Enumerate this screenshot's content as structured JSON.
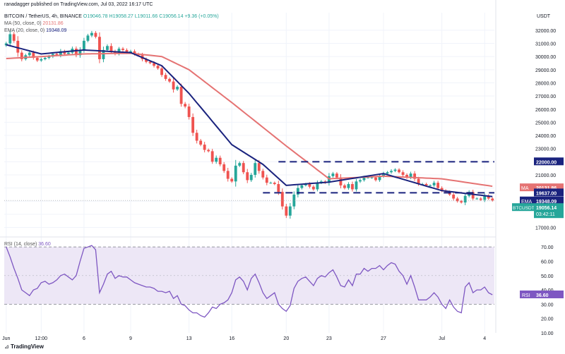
{
  "header": {
    "publisher_line": "ranadagger published on TradingView.com, Jul 03, 2022 16:17 UTC",
    "symbol_line": "BITCOIN / TetherUS, 4h, BINANCE",
    "ohlc": "O19046.78  H19058.27  L19011.66  C19056.14  +9.36 (+0.05%)",
    "ma_label": "MA (50, close, 0)",
    "ma_value": "20131.86",
    "ema_label": "EMA (20, close, 0)",
    "ema_value": "19348.09",
    "currency": "USDT"
  },
  "footer": {
    "brand": "TradingView"
  },
  "colors": {
    "up": "#26a69a",
    "down": "#ef5350",
    "ma": "#e57373",
    "ema": "#1a237e",
    "rsi": "#7e57c2",
    "rsi_band": "#ede7f6",
    "hline": "#1a237e"
  },
  "chart_data": [
    {
      "type": "candlestick",
      "title": "BITCOIN / TetherUS, 4h, BINANCE",
      "ylim": [
        16600,
        32800
      ],
      "y_ticks": [
        "32000.00",
        "31000.00",
        "30000.00",
        "29000.00",
        "28000.00",
        "27000.00",
        "26000.00",
        "25000.00",
        "24000.00",
        "23000.00",
        "22000.00",
        "21000.00",
        "20000.00",
        "19000.00",
        "18000.00",
        "17000.00"
      ],
      "x_ticks": [
        "Jun",
        "12:00",
        "6",
        "9",
        "13",
        "16",
        "20",
        "23",
        "27",
        "Jul",
        "4"
      ],
      "x_tick_index": [
        0,
        9,
        20,
        32,
        47,
        58,
        72,
        83,
        97,
        112,
        123
      ],
      "x_count": 126,
      "close": [
        31000,
        31700,
        31200,
        30300,
        29800,
        30100,
        30300,
        29900,
        29700,
        29800,
        29900,
        30000,
        30200,
        30100,
        30400,
        30200,
        30300,
        30600,
        30100,
        30500,
        31200,
        31600,
        31800,
        31500,
        29800,
        30500,
        30800,
        30400,
        30200,
        30600,
        30500,
        30300,
        30400,
        30200,
        30100,
        29800,
        29600,
        29500,
        29300,
        29100,
        28600,
        28300,
        28100,
        27500,
        27700,
        26400,
        26200,
        25400,
        24200,
        23600,
        23300,
        22900,
        22800,
        22000,
        22300,
        21800,
        21300,
        20700,
        20500,
        21700,
        21900,
        21200,
        20600,
        21000,
        21900,
        21300,
        20800,
        20400,
        20400,
        20300,
        19700,
        18600,
        17900,
        18600,
        19500,
        20000,
        20200,
        20300,
        20100,
        19900,
        20400,
        20500,
        20400,
        20900,
        21100,
        20800,
        20200,
        20000,
        20300,
        19900,
        20500,
        20600,
        20800,
        20800,
        20800,
        20600,
        20900,
        21100,
        21200,
        21300,
        21400,
        21200,
        21000,
        20800,
        21100,
        20700,
        20300,
        20300,
        20200,
        20200,
        20400,
        20000,
        19800,
        19700,
        19500,
        19200,
        19000,
        18900,
        19400,
        19700,
        19200,
        19200,
        19100,
        19400,
        19200,
        19056.14
      ],
      "annotations": [
        {
          "label": "22000.00",
          "value": 22000
        },
        {
          "label": "19637.00",
          "value": 19637
        }
      ],
      "series": [
        {
          "name": "MA (50, close, 0)",
          "last": "20131.86",
          "anchors_x": [
            0,
            9,
            20,
            32,
            40,
            47,
            58,
            72,
            83,
            97,
            112,
            125
          ],
          "values": [
            29850,
            30000,
            30200,
            30250,
            30000,
            29000,
            26500,
            23200,
            20700,
            20900,
            20700,
            20131.86
          ]
        },
        {
          "name": "EMA (20, close, 0)",
          "last": "19348.09",
          "anchors_x": [
            0,
            9,
            20,
            32,
            40,
            47,
            58,
            66,
            72,
            83,
            97,
            112,
            125
          ],
          "values": [
            30900,
            30200,
            30500,
            30300,
            29300,
            27200,
            23300,
            21800,
            20200,
            20450,
            21100,
            19800,
            19348.09
          ]
        }
      ],
      "last_price_label": "BTCUSDT",
      "last_price": "19056.14",
      "countdown": "03:42:11"
    },
    {
      "type": "line",
      "title": "RSI (14, close)",
      "legend_value": "36.60",
      "label": "RSI",
      "last": "36.60",
      "ylim": [
        10,
        75
      ],
      "y_ticks": [
        "70.00",
        "60.00",
        "50.00",
        "40.00",
        "30.00",
        "20.00",
        "10.00"
      ],
      "band": [
        30,
        70
      ],
      "midline": 50,
      "values": [
        70,
        63,
        55,
        48,
        40,
        38,
        36,
        40,
        41,
        45,
        46,
        44,
        45,
        47,
        50,
        51,
        49,
        47,
        50,
        60,
        69,
        70,
        71,
        68,
        38,
        44,
        51,
        53,
        48,
        50,
        49,
        49,
        47,
        45,
        44,
        43,
        42,
        42,
        41,
        39,
        39,
        38,
        39,
        34,
        36,
        30,
        29,
        26,
        24,
        24,
        22,
        21,
        24,
        28,
        27,
        30,
        31,
        33,
        38,
        47,
        49,
        46,
        40,
        48,
        51,
        45,
        38,
        34,
        36,
        38,
        30,
        27,
        25,
        29,
        41,
        46,
        48,
        49,
        46,
        43,
        48,
        50,
        49,
        52,
        54,
        49,
        43,
        42,
        47,
        43,
        51,
        51,
        55,
        53,
        55,
        55,
        57,
        54,
        57,
        59,
        58,
        53,
        50,
        44,
        50,
        42,
        33,
        33,
        33,
        35,
        38,
        35,
        30,
        27,
        33,
        28,
        25,
        24,
        42,
        45,
        38,
        40,
        40,
        42,
        38,
        36.6
      ]
    }
  ]
}
